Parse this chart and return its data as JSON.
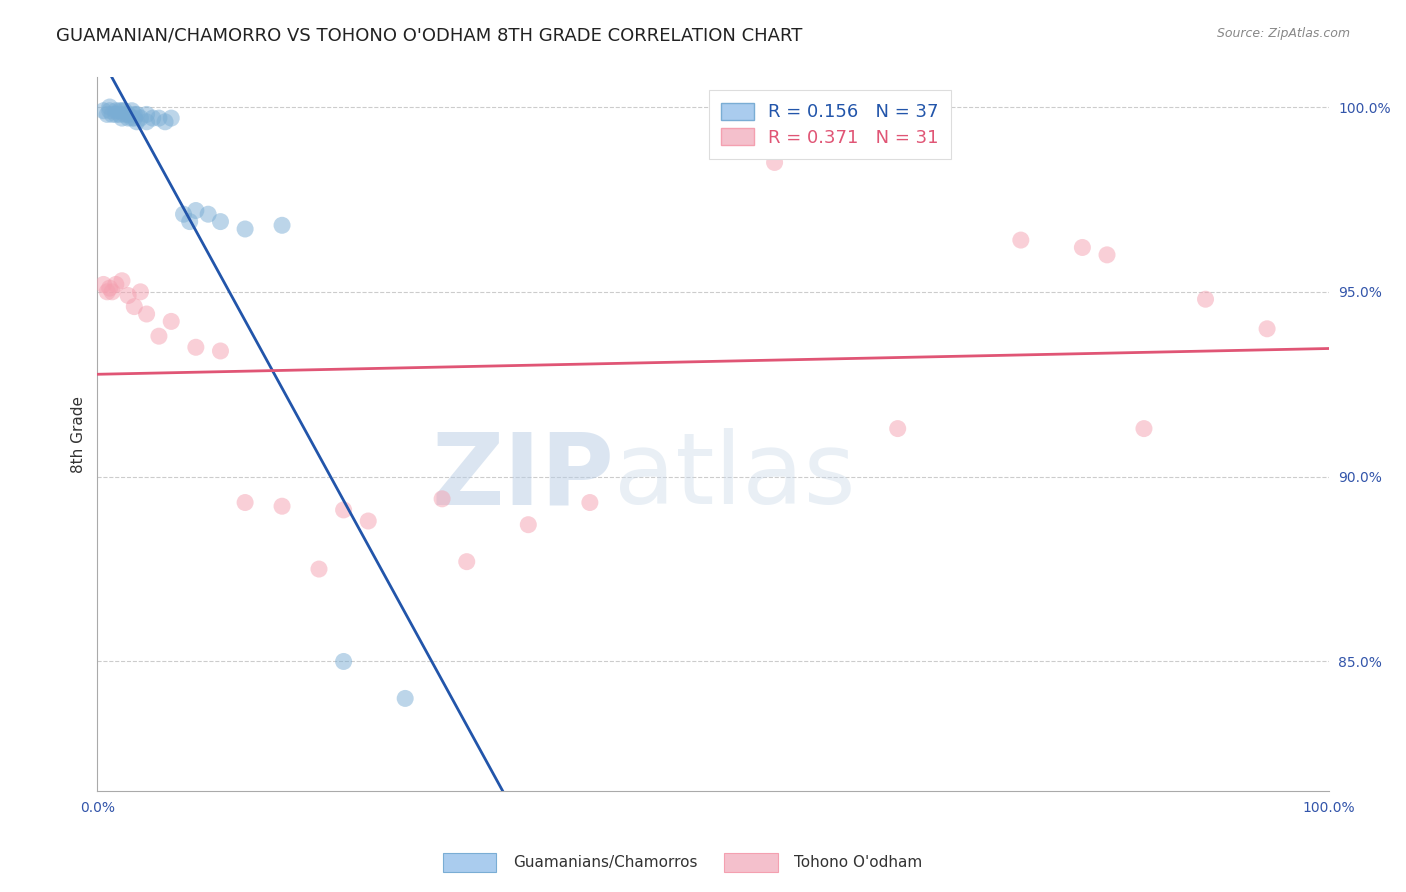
{
  "title": "GUAMANIAN/CHAMORRO VS TOHONO O'ODHAM 8TH GRADE CORRELATION CHART",
  "source": "Source: ZipAtlas.com",
  "xlabel": "",
  "ylabel": "8th Grade",
  "xlim": [
    0.0,
    1.0
  ],
  "ylim": [
    0.815,
    1.008
  ],
  "yticks": [
    0.85,
    0.9,
    0.95,
    1.0
  ],
  "ytick_labels": [
    "85.0%",
    "90.0%",
    "95.0%",
    "100.0%"
  ],
  "xticks": [
    0.0,
    0.2,
    0.4,
    0.6,
    0.8,
    1.0
  ],
  "xtick_labels": [
    "0.0%",
    "",
    "",
    "",
    "",
    "100.0%"
  ],
  "blue_label": "Guamanians/Chamorros",
  "pink_label": "Tohono O'odham",
  "blue_R": 0.156,
  "blue_N": 37,
  "pink_R": 0.371,
  "pink_N": 31,
  "blue_color": "#7aadd4",
  "pink_color": "#f4a0b0",
  "blue_line_color": "#2255aa",
  "pink_line_color": "#e05575",
  "watermark_zip": "ZIP",
  "watermark_atlas": "atlas",
  "blue_x": [
    0.005,
    0.008,
    0.01,
    0.01,
    0.012,
    0.015,
    0.015,
    0.018,
    0.018,
    0.02,
    0.02,
    0.022,
    0.022,
    0.025,
    0.025,
    0.028,
    0.028,
    0.03,
    0.03,
    0.032,
    0.032,
    0.035,
    0.04,
    0.04,
    0.045,
    0.05,
    0.055,
    0.06,
    0.07,
    0.075,
    0.08,
    0.09,
    0.1,
    0.12,
    0.15,
    0.2,
    0.25
  ],
  "blue_y": [
    0.999,
    0.998,
    1.0,
    0.999,
    0.998,
    0.999,
    0.998,
    0.999,
    0.998,
    0.999,
    0.997,
    0.999,
    0.998,
    0.998,
    0.997,
    0.999,
    0.997,
    0.998,
    0.997,
    0.998,
    0.996,
    0.997,
    0.998,
    0.996,
    0.997,
    0.997,
    0.996,
    0.997,
    0.971,
    0.969,
    0.972,
    0.971,
    0.969,
    0.967,
    0.968,
    0.85,
    0.84
  ],
  "pink_x": [
    0.005,
    0.008,
    0.01,
    0.012,
    0.015,
    0.02,
    0.025,
    0.03,
    0.035,
    0.04,
    0.05,
    0.06,
    0.08,
    0.1,
    0.12,
    0.15,
    0.18,
    0.2,
    0.22,
    0.28,
    0.3,
    0.35,
    0.4,
    0.55,
    0.65,
    0.75,
    0.8,
    0.82,
    0.85,
    0.9,
    0.95
  ],
  "pink_y": [
    0.952,
    0.95,
    0.951,
    0.95,
    0.952,
    0.953,
    0.949,
    0.946,
    0.95,
    0.944,
    0.938,
    0.942,
    0.935,
    0.934,
    0.893,
    0.892,
    0.875,
    0.891,
    0.888,
    0.894,
    0.877,
    0.887,
    0.893,
    0.985,
    0.913,
    0.964,
    0.962,
    0.96,
    0.913,
    0.948,
    0.94
  ],
  "background_color": "#ffffff",
  "grid_color": "#cccccc",
  "axis_color": "#aaaaaa",
  "tick_color": "#3355AA",
  "title_fontsize": 13,
  "axis_label_fontsize": 11,
  "tick_fontsize": 10,
  "legend_fontsize": 13
}
